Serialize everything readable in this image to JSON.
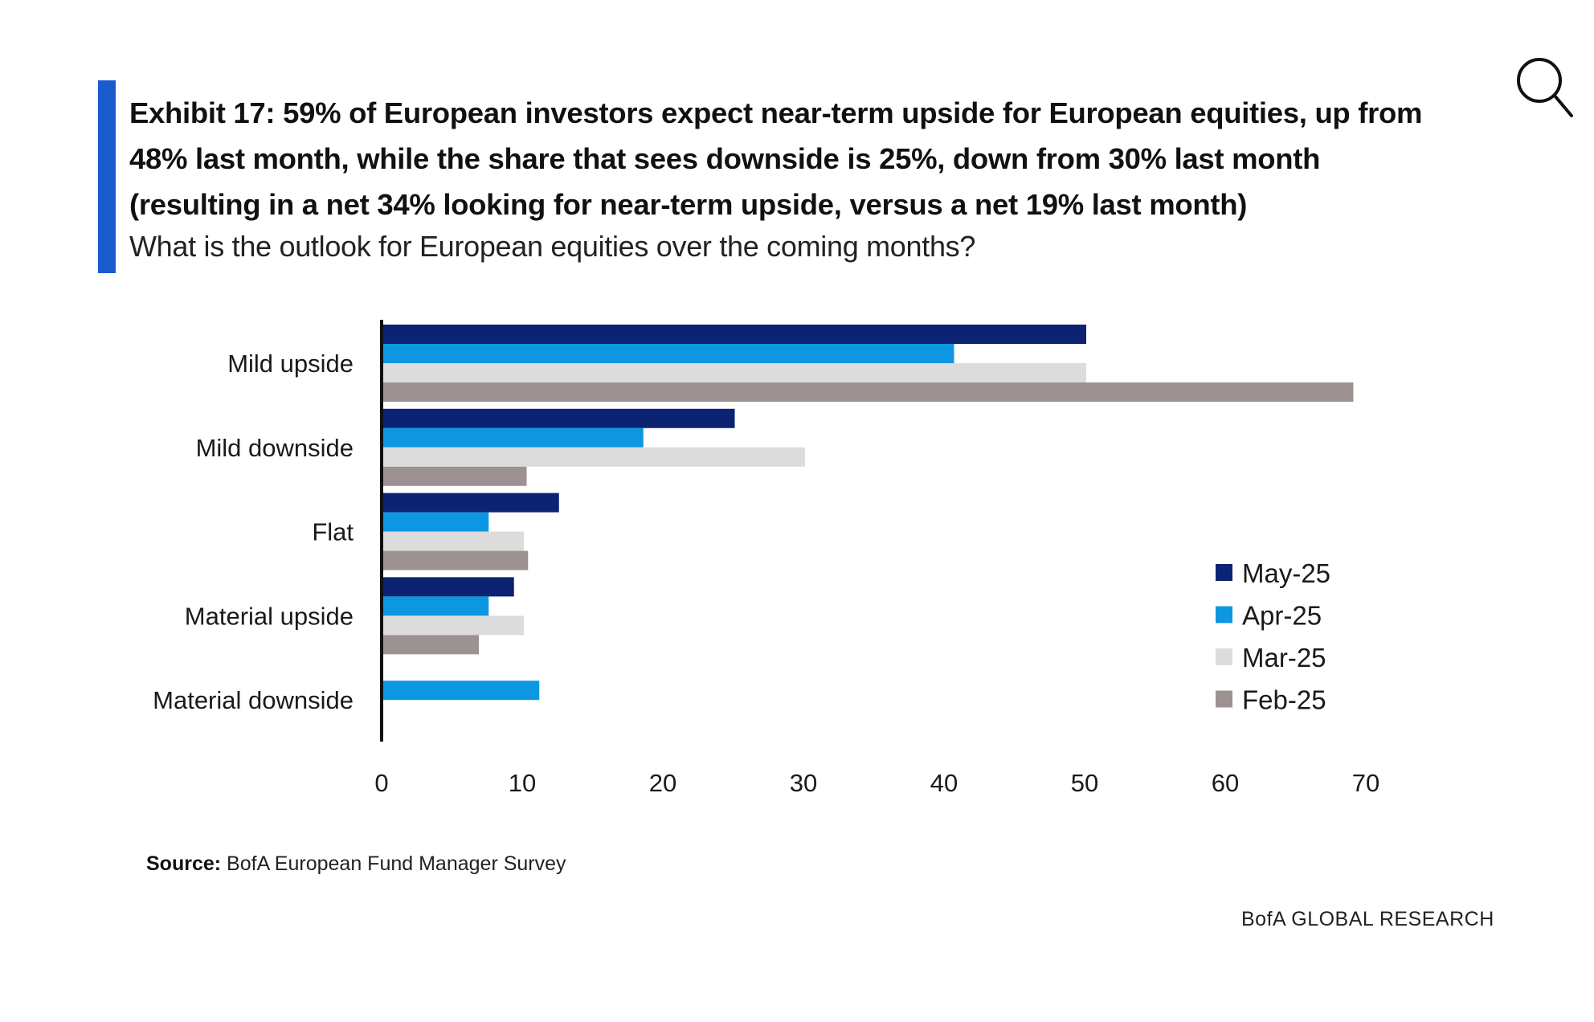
{
  "header": {
    "title_lines": [
      "Exhibit 17: 59% of European investors expect near-term upside for European equities, up from",
      "48% last month, while the share that sees downside is 25%, down from 30% last month",
      "(resulting in a net 34% looking for near-term upside, versus a net 19% last month)"
    ],
    "subtitle": "What is the outlook for European equities over the coming months?",
    "accent_color": "#1a5ccf",
    "search_icon": "magnifier-icon"
  },
  "source": {
    "label": "Source:",
    "text": " BofA European Fund Manager Survey"
  },
  "footer": {
    "brand": "BofA GLOBAL RESEARCH"
  },
  "chart_data": {
    "type": "bar",
    "orientation": "horizontal",
    "title": "What is the outlook for European equities over the coming months?",
    "xlabel": "",
    "ylabel": "",
    "categories": [
      "Mild upside",
      "Mild downside",
      "Flat",
      "Material upside",
      "Material downside"
    ],
    "series": [
      {
        "name": "May-25",
        "color": "#0c2272",
        "values": [
          50,
          25,
          12.5,
          9.3,
          0
        ]
      },
      {
        "name": "Apr-25",
        "color": "#0c97e0",
        "values": [
          40.6,
          18.5,
          7.5,
          7.5,
          11.1
        ]
      },
      {
        "name": "Mar-25",
        "color": "#dcdcdc",
        "values": [
          50,
          30,
          10,
          10,
          0
        ]
      },
      {
        "name": "Feb-25",
        "color": "#9c9292",
        "values": [
          69,
          10.2,
          10.3,
          6.8,
          0
        ]
      }
    ],
    "xlim": [
      0,
      70
    ],
    "xticks": [
      0,
      10,
      20,
      30,
      40,
      50,
      60,
      70
    ],
    "grid": false,
    "legend": {
      "position": "right",
      "entries": [
        "May-25",
        "Apr-25",
        "Mar-25",
        "Feb-25"
      ]
    }
  }
}
